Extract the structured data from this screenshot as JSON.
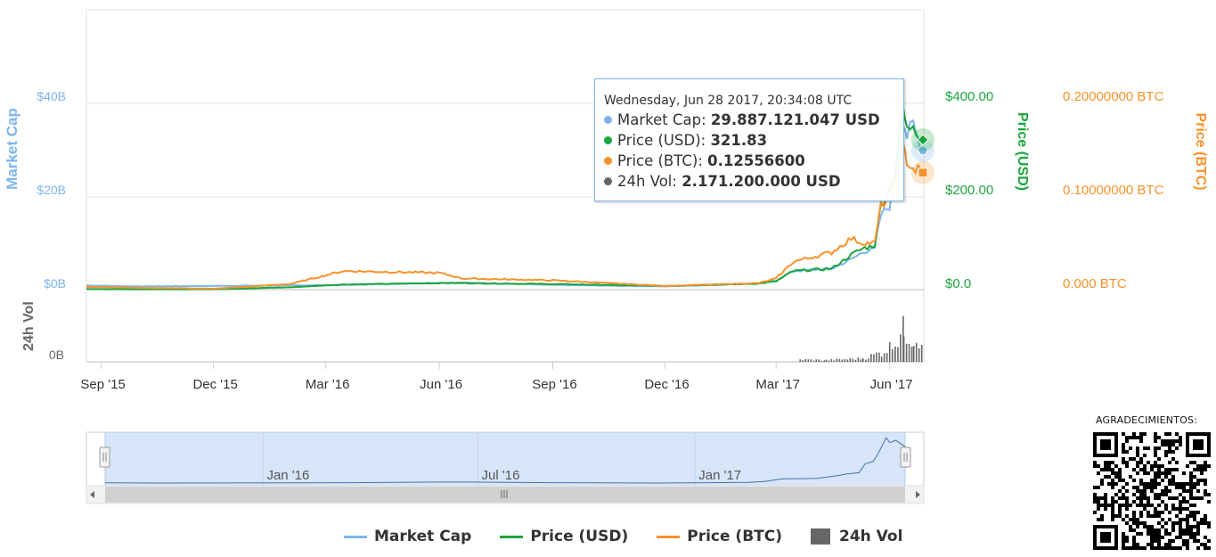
{
  "chart_data": {
    "type": "line",
    "x_ticks": [
      "Sep '15",
      "Dec '15",
      "Mar '16",
      "Jun '16",
      "Sep '16",
      "Dec '16",
      "Mar '17",
      "Jun '17"
    ],
    "x_range": [
      "2015-08-20",
      "2017-06-28"
    ],
    "axes": {
      "market_cap": {
        "title": "Market Cap",
        "ticks": [
          "$0B",
          "$20B",
          "$40B"
        ],
        "range": [
          0,
          40000000000
        ]
      },
      "price_usd": {
        "title": "Price (USD)",
        "ticks": [
          "$0.0",
          "$200.00",
          "$400.00"
        ],
        "range": [
          0,
          400
        ]
      },
      "price_btc": {
        "title": "Price (BTC)",
        "ticks": [
          "0.000 BTC",
          "0.10000000 BTC",
          "0.20000000 BTC"
        ],
        "range": [
          0,
          0.2
        ]
      },
      "volume": {
        "title": "24h Vol",
        "ticks": [
          "0B"
        ]
      }
    },
    "series": [
      {
        "name": "Market Cap",
        "color": "#7cb5ec",
        "x": [
          "2015-08-20",
          "2015-10-01",
          "2015-12-01",
          "2016-02-01",
          "2016-03-15",
          "2016-06-01",
          "2016-06-20",
          "2016-09-01",
          "2016-12-01",
          "2017-02-15",
          "2017-03-01",
          "2017-03-15",
          "2017-04-15",
          "2017-05-01",
          "2017-05-10",
          "2017-05-20",
          "2017-05-25",
          "2017-06-01",
          "2017-06-05",
          "2017-06-12",
          "2017-06-15",
          "2017-06-20",
          "2017-06-28"
        ],
        "values": [
          900000000,
          700000000,
          800000000,
          900000000,
          1000000000,
          1500000000,
          1500000000,
          1000000000,
          700000000,
          1300000000,
          2000000000,
          4000000000,
          4500000000,
          6500000000,
          8000000000,
          9000000000,
          16000000000,
          18000000000,
          24000000000,
          37000000000,
          33000000000,
          35000000000,
          29887121047
        ]
      },
      {
        "name": "Price (USD)",
        "color": "#1aa53c",
        "x": [
          "2015-08-20",
          "2015-10-01",
          "2015-12-01",
          "2016-02-01",
          "2016-03-15",
          "2016-06-01",
          "2016-06-20",
          "2016-09-01",
          "2016-12-01",
          "2017-02-15",
          "2017-03-01",
          "2017-03-15",
          "2017-04-15",
          "2017-05-01",
          "2017-05-10",
          "2017-05-20",
          "2017-05-25",
          "2017-06-01",
          "2017-06-05",
          "2017-06-12",
          "2017-06-15",
          "2017-06-20",
          "2017-06-28"
        ],
        "values": [
          1.2,
          0.8,
          0.9,
          5,
          11,
          14,
          14,
          12,
          8,
          13,
          18,
          40,
          45,
          75,
          88,
          95,
          180,
          220,
          240,
          390,
          340,
          360,
          321.83
        ]
      },
      {
        "name": "Price (BTC)",
        "color": "#f7922a",
        "x": [
          "2015-08-20",
          "2015-10-01",
          "2015-12-01",
          "2016-02-01",
          "2016-03-15",
          "2016-06-01",
          "2016-06-20",
          "2016-09-01",
          "2016-12-01",
          "2017-02-15",
          "2017-03-01",
          "2017-03-15",
          "2017-04-15",
          "2017-05-01",
          "2017-05-10",
          "2017-05-20",
          "2017-05-25",
          "2017-06-01",
          "2017-06-05",
          "2017-06-12",
          "2017-06-15",
          "2017-06-20",
          "2017-06-28"
        ],
        "values": [
          0.003,
          0.002,
          0.001,
          0.006,
          0.02,
          0.018,
          0.012,
          0.01,
          0.004,
          0.007,
          0.012,
          0.03,
          0.04,
          0.055,
          0.05,
          0.05,
          0.09,
          0.1,
          0.12,
          0.15,
          0.14,
          0.13,
          0.125566
        ]
      },
      {
        "name": "24h Vol",
        "color": "#666666",
        "type": "bar",
        "x": [
          "2017-03-20",
          "2017-04-10",
          "2017-05-10",
          "2017-05-25",
          "2017-06-05",
          "2017-06-12",
          "2017-06-20",
          "2017-06-28"
        ],
        "values": [
          200000000,
          150000000,
          300000000,
          800000000,
          1600000000,
          2800000000,
          2000000000,
          2171200000
        ]
      }
    ],
    "navigator": {
      "ticks": [
        "Jan '16",
        "Jul '16",
        "Jan '17"
      ]
    },
    "tooltip": {
      "date": "Wednesday, Jun 28 2017, 20:34:08 UTC",
      "rows": [
        {
          "label": "Market Cap:",
          "value": "29.887.121.047 USD",
          "color": "#7cb5ec"
        },
        {
          "label": "Price (USD):",
          "value": "321.83",
          "color": "#1aa53c"
        },
        {
          "label": "Price (BTC):",
          "value": "0.12556600",
          "color": "#f7922a"
        },
        {
          "label": "24h Vol:",
          "value": "2.171.200.000 USD",
          "color": "#666666"
        }
      ]
    }
  },
  "legend": [
    {
      "label": "Market Cap",
      "color": "#7cb5ec",
      "shape": "line"
    },
    {
      "label": "Price (USD)",
      "color": "#1aa53c",
      "shape": "line"
    },
    {
      "label": "Price (BTC)",
      "color": "#f7922a",
      "shape": "line"
    },
    {
      "label": "24h Vol",
      "color": "#666666",
      "shape": "box"
    }
  ],
  "credit": {
    "label": "AGRADECIMIENTOS:"
  }
}
